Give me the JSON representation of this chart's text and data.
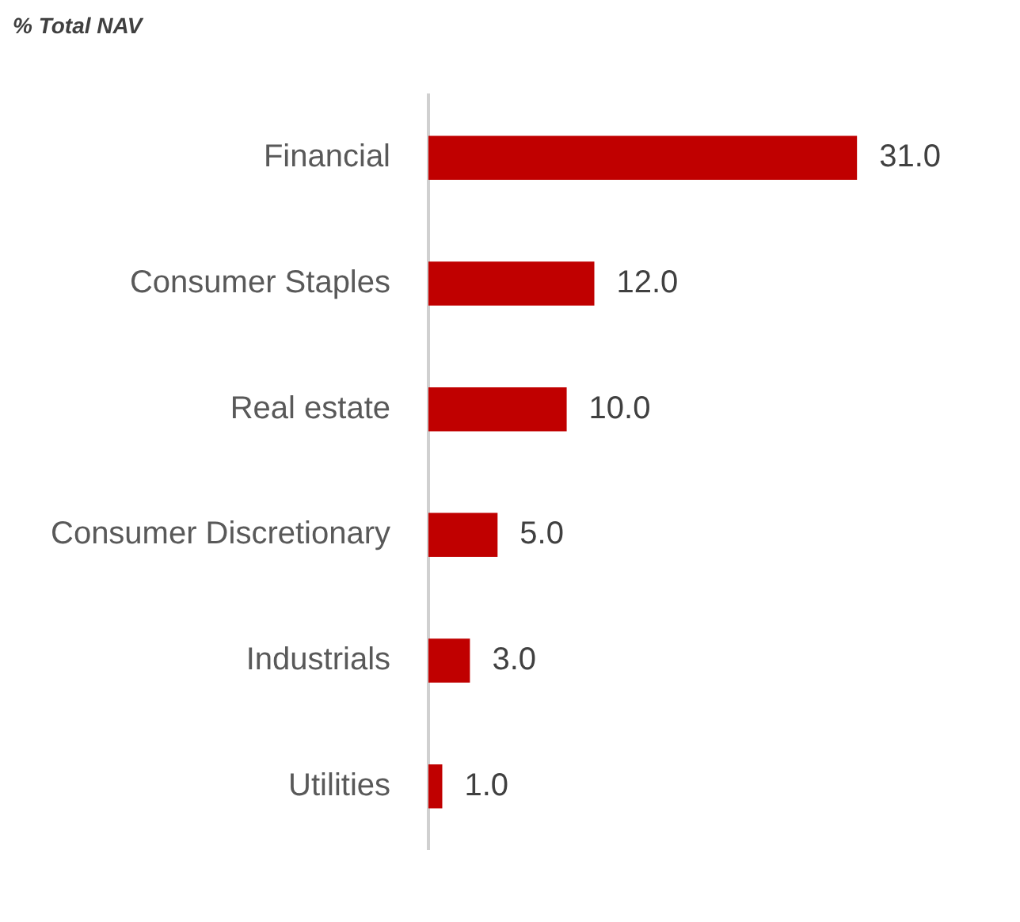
{
  "chart_data": {
    "type": "bar",
    "orientation": "horizontal",
    "title": "% Total NAV",
    "categories": [
      "Financial",
      "Consumer Staples",
      "Real estate",
      "Consumer Discretionary",
      "Industrials",
      "Utilities"
    ],
    "values": [
      31,
      12,
      10,
      5,
      3,
      1
    ],
    "value_labels": [
      "31.0",
      "12.0",
      "10.0",
      "5.0",
      "3.0",
      "1.0"
    ],
    "color": "#c00000",
    "legend": false
  }
}
